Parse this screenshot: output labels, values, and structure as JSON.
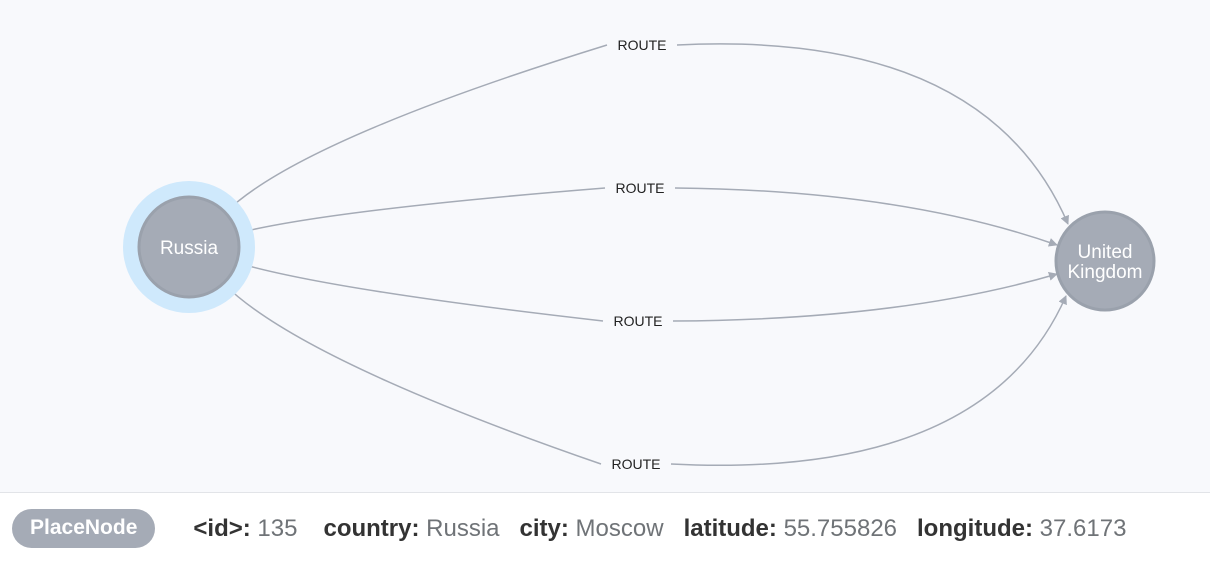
{
  "graph": {
    "nodes": [
      {
        "id": "russia",
        "lines": [
          "Russia"
        ],
        "selected": true
      },
      {
        "id": "uk",
        "lines": [
          "United",
          "Kingdom"
        ],
        "selected": false
      }
    ],
    "edges": [
      {
        "from": "russia",
        "to": "uk",
        "label": "ROUTE"
      },
      {
        "from": "russia",
        "to": "uk",
        "label": "ROUTE"
      },
      {
        "from": "russia",
        "to": "uk",
        "label": "ROUTE"
      },
      {
        "from": "russia",
        "to": "uk",
        "label": "ROUTE"
      }
    ],
    "colors": {
      "node_fill": "#a5abb6",
      "node_stroke": "#9aa1ac",
      "selection_halo": "#cfe9fc",
      "edge": "#a5abb6",
      "background": "#f8f9fc"
    }
  },
  "inspector": {
    "label": "PlaceNode",
    "properties": [
      {
        "key": "<id>:",
        "value": "135"
      },
      {
        "key": "country:",
        "value": "Russia"
      },
      {
        "key": "city:",
        "value": "Moscow"
      },
      {
        "key": "latitude:",
        "value": "55.755826"
      },
      {
        "key": "longitude:",
        "value": "37.6173"
      }
    ]
  }
}
